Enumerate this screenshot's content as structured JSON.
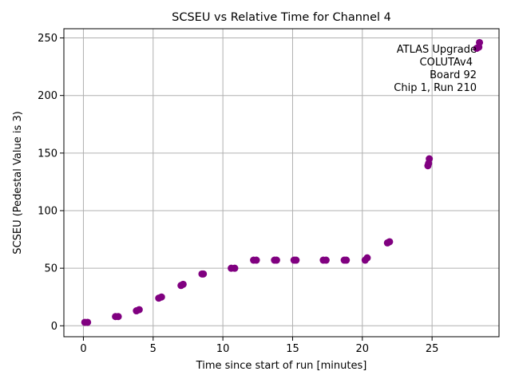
{
  "chart_data": {
    "type": "scatter",
    "title": "SCSEU vs Relative Time for Channel 4",
    "xlabel": "Time since start of run [minutes]",
    "ylabel": "SCSEU (Pedestal Value is 3)",
    "xlim": [
      -1.4,
      29.8
    ],
    "ylim": [
      -9.5,
      258
    ],
    "xticks": [
      0,
      5,
      10,
      15,
      20,
      25
    ],
    "yticks": [
      0,
      50,
      100,
      150,
      200,
      250
    ],
    "grid": true,
    "marker_color": "#800080",
    "annotation": [
      "ATLAS Upgrade",
      "COLUTAv4",
      "Board 92",
      "Chip 1, Run 210"
    ],
    "annotation_position": "top-right",
    "points": [
      {
        "x": 0.1,
        "y": 3
      },
      {
        "x": 0.3,
        "y": 3
      },
      {
        "x": 2.3,
        "y": 8
      },
      {
        "x": 2.5,
        "y": 8
      },
      {
        "x": 3.8,
        "y": 13
      },
      {
        "x": 4.0,
        "y": 14
      },
      {
        "x": 5.4,
        "y": 24
      },
      {
        "x": 5.6,
        "y": 25
      },
      {
        "x": 7.0,
        "y": 35
      },
      {
        "x": 7.15,
        "y": 36
      },
      {
        "x": 8.5,
        "y": 45
      },
      {
        "x": 8.6,
        "y": 45
      },
      {
        "x": 10.6,
        "y": 50
      },
      {
        "x": 10.85,
        "y": 50
      },
      {
        "x": 12.2,
        "y": 57
      },
      {
        "x": 12.4,
        "y": 57
      },
      {
        "x": 13.7,
        "y": 57
      },
      {
        "x": 13.85,
        "y": 57
      },
      {
        "x": 15.1,
        "y": 57
      },
      {
        "x": 15.25,
        "y": 57
      },
      {
        "x": 17.2,
        "y": 57
      },
      {
        "x": 17.4,
        "y": 57
      },
      {
        "x": 18.7,
        "y": 57
      },
      {
        "x": 18.85,
        "y": 57
      },
      {
        "x": 20.2,
        "y": 57
      },
      {
        "x": 20.35,
        "y": 59
      },
      {
        "x": 21.8,
        "y": 72
      },
      {
        "x": 21.95,
        "y": 73
      },
      {
        "x": 24.7,
        "y": 139
      },
      {
        "x": 24.75,
        "y": 141
      },
      {
        "x": 24.8,
        "y": 145
      },
      {
        "x": 28.2,
        "y": 241
      },
      {
        "x": 28.35,
        "y": 242
      },
      {
        "x": 28.4,
        "y": 246
      }
    ]
  }
}
